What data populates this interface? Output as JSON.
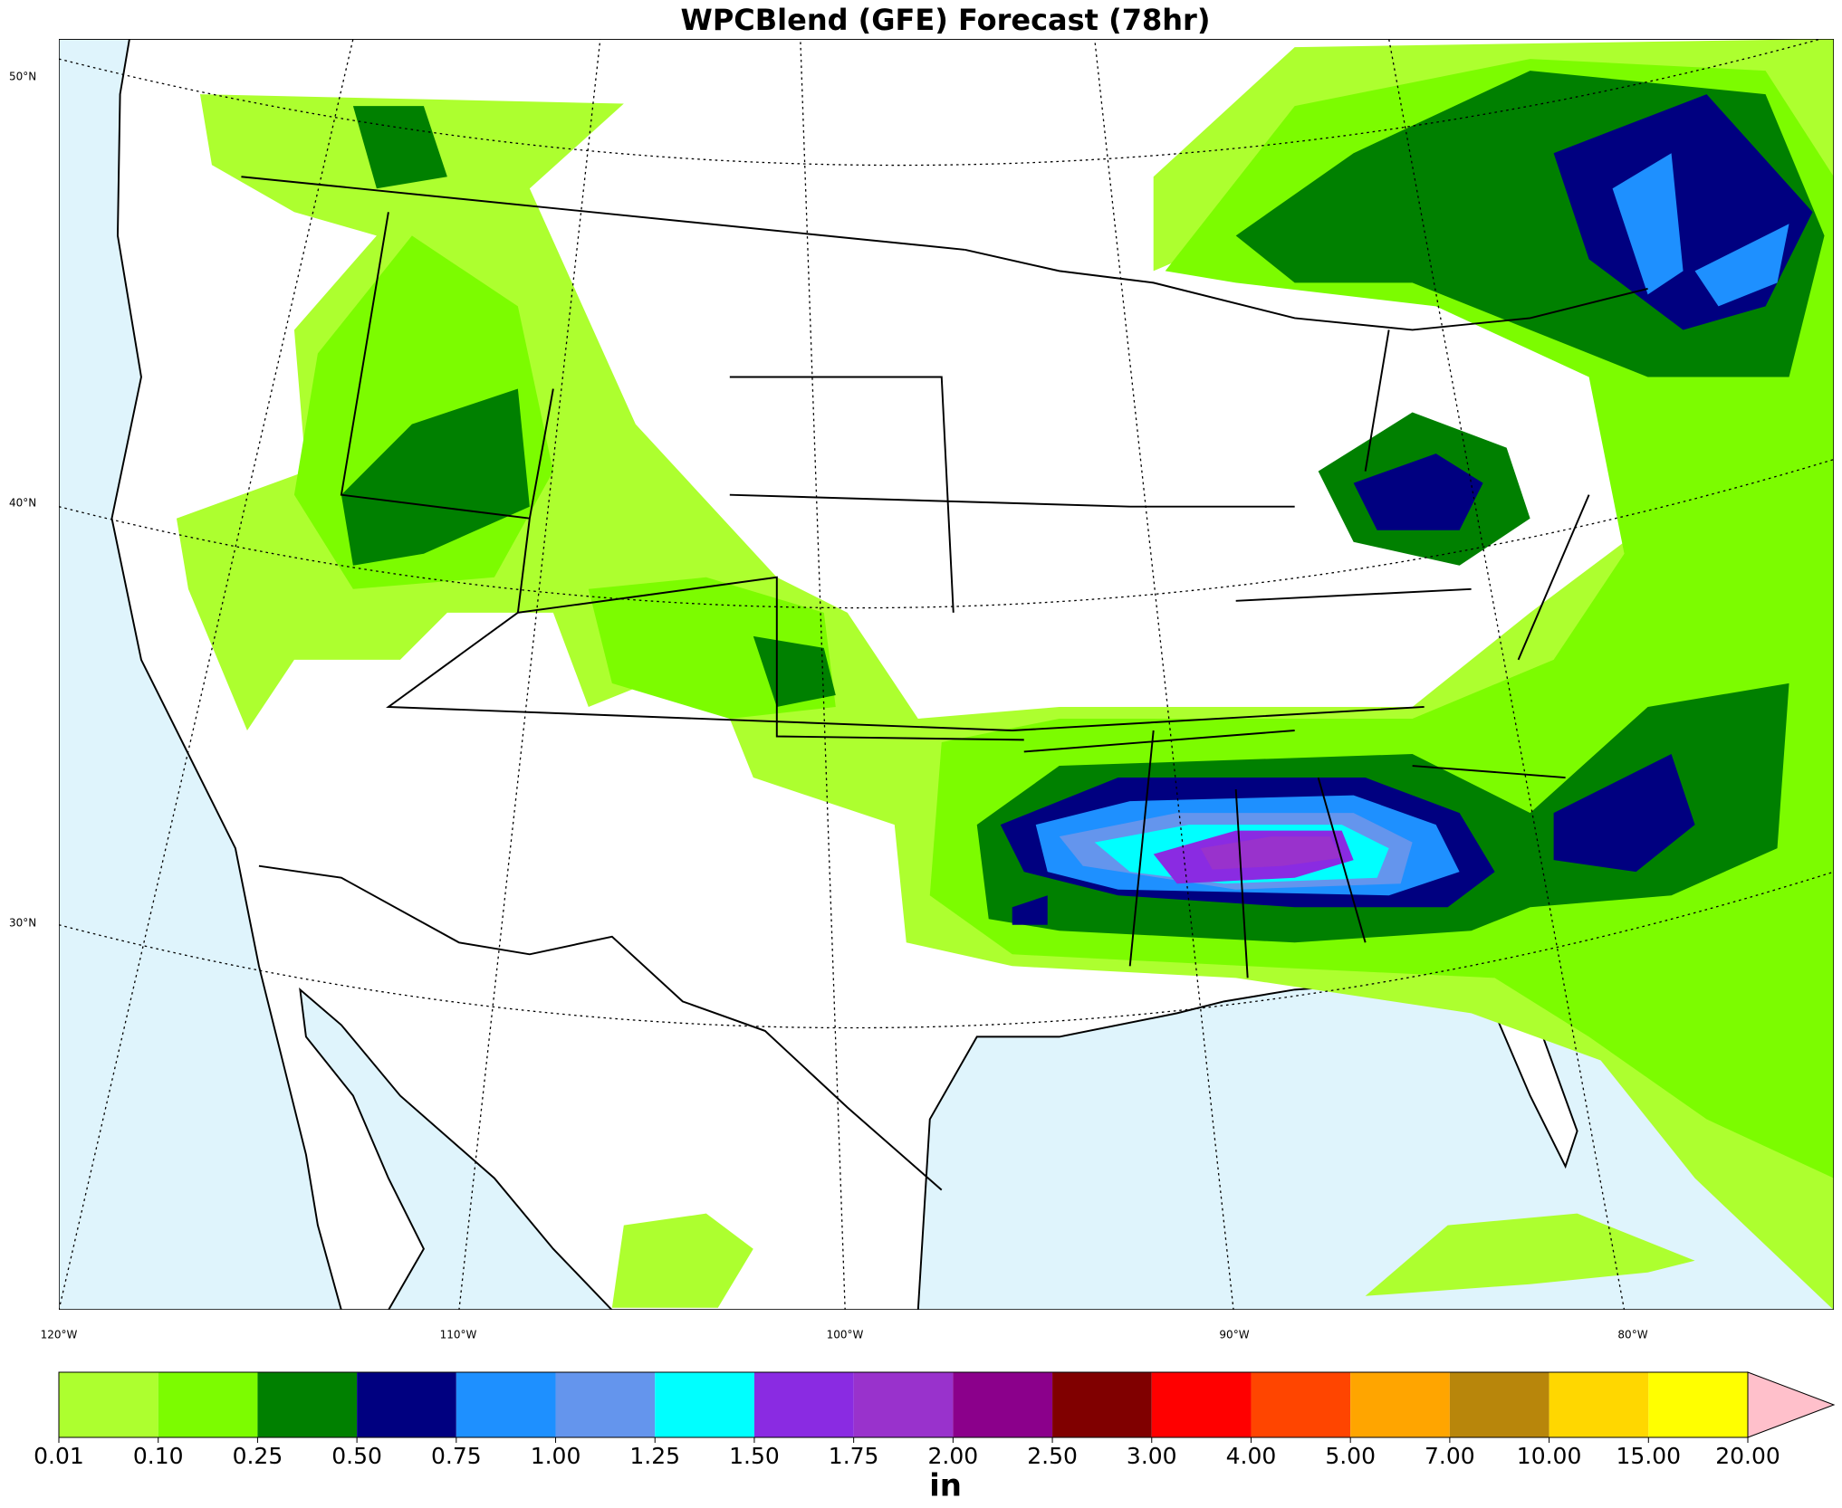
{
  "title": "WPCBlend (GFE) Forecast (78hr)",
  "map": {
    "lat_labels": [
      "50°N",
      "40°N",
      "30°N"
    ],
    "lon_labels": [
      "120°W",
      "110°W",
      "100°W",
      "90°W",
      "80°W"
    ]
  },
  "colorbar": {
    "ticks": [
      "0.01",
      "0.10",
      "0.25",
      "0.50",
      "0.75",
      "1.00",
      "1.25",
      "1.50",
      "1.75",
      "2.00",
      "2.50",
      "3.00",
      "4.00",
      "5.00",
      "7.00",
      "10.00",
      "15.00",
      "20.00"
    ],
    "colors": [
      "#adff2f",
      "#7cfc00",
      "#008000",
      "#000080",
      "#1e90ff",
      "#6495ed",
      "#00ffff",
      "#8a2be2",
      "#9932cc",
      "#8b008b",
      "#800000",
      "#ff0000",
      "#ff4500",
      "#ffa500",
      "#b8860b",
      "#ffd700",
      "#ffff00"
    ],
    "extend_color": "#ffc0cb",
    "unit": "in"
  }
}
